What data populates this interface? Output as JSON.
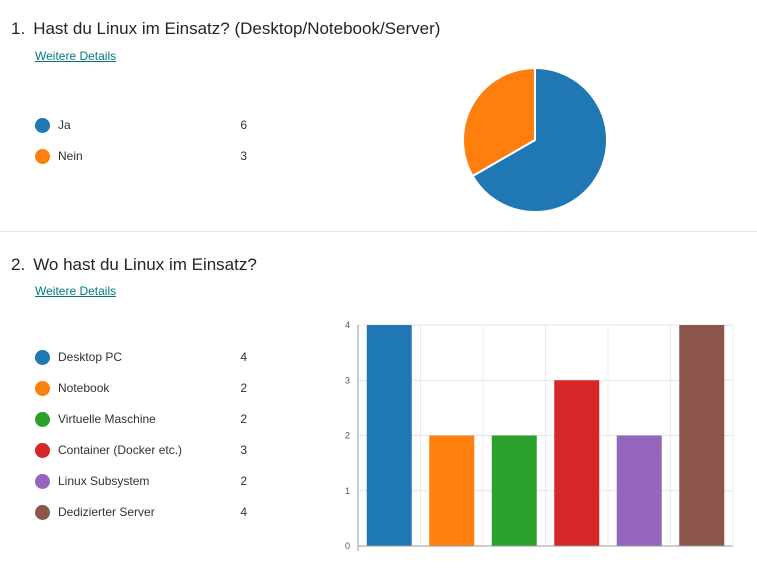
{
  "questions": [
    {
      "number": "1.",
      "title": "Hast du Linux im Einsatz? (Desktop/Notebook/Server)",
      "details_link": "Weitere Details",
      "options": [
        {
          "label": "Ja",
          "count": "6",
          "color": "#1f77b4"
        },
        {
          "label": "Nein",
          "count": "3",
          "color": "#ff7f0e"
        }
      ]
    },
    {
      "number": "2.",
      "title": "Wo hast du Linux im Einsatz?",
      "details_link": "Weitere Details",
      "options": [
        {
          "label": "Desktop PC",
          "count": "4",
          "color": "#1f77b4"
        },
        {
          "label": "Notebook",
          "count": "2",
          "color": "#ff7f0e"
        },
        {
          "label": "Virtuelle Maschine",
          "count": "2",
          "color": "#2ca02c"
        },
        {
          "label": "Container (Docker etc.)",
          "count": "3",
          "color": "#d62728"
        },
        {
          "label": "Linux Subsystem",
          "count": "2",
          "color": "#9467bd"
        },
        {
          "label": "Dedizierter Server",
          "count": "4",
          "color": "#8c564b"
        }
      ]
    }
  ],
  "chart_data": [
    {
      "type": "pie",
      "categories": [
        "Ja",
        "Nein"
      ],
      "values": [
        6,
        3
      ],
      "colors": [
        "#1f77b4",
        "#ff7f0e"
      ]
    },
    {
      "type": "bar",
      "categories": [
        "Desktop PC",
        "Notebook",
        "Virtuelle Maschine",
        "Container (Docker etc.)",
        "Linux Subsystem",
        "Dedizierter Server"
      ],
      "values": [
        4,
        2,
        2,
        3,
        2,
        4
      ],
      "colors": [
        "#1f77b4",
        "#ff7f0e",
        "#2ca02c",
        "#d62728",
        "#9467bd",
        "#8c564b"
      ],
      "ylim": [
        0,
        4
      ],
      "yticks": [
        "0",
        "1",
        "2",
        "3",
        "4"
      ],
      "grid": true
    }
  ]
}
